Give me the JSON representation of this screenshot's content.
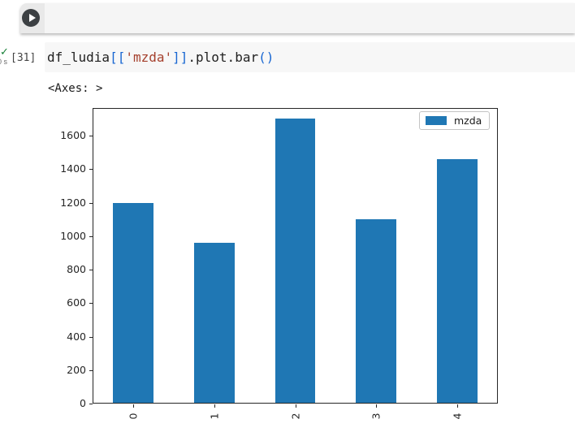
{
  "toolbar": {
    "run_button": "play-icon"
  },
  "cell": {
    "status_icon": "checkmark",
    "check_glyph": "✓",
    "exec_time": "0 s",
    "exec_count": "[31]",
    "code_tokens": [
      {
        "text": "df_ludia",
        "type": "plain"
      },
      {
        "text": "[[",
        "type": "bracket"
      },
      {
        "text": "'mzda'",
        "type": "string"
      },
      {
        "text": "]]",
        "type": "bracket"
      },
      {
        "text": ".plot.bar",
        "type": "plain"
      },
      {
        "text": "()",
        "type": "bracket"
      }
    ],
    "output_text": "<Axes: >"
  },
  "chart_data": {
    "type": "bar",
    "categories": [
      "0",
      "1",
      "2",
      "3",
      "4"
    ],
    "series": [
      {
        "name": "mzda",
        "values": [
          1200,
          960,
          1700,
          1100,
          1460
        ]
      }
    ],
    "title": "",
    "xlabel": "",
    "ylabel": "",
    "ylim": [
      0,
      1765
    ],
    "yticks": [
      0,
      200,
      400,
      600,
      800,
      1000,
      1200,
      1400,
      1600
    ],
    "x_tick_rotation": 90,
    "bar_width_fraction": 0.5,
    "grid": false,
    "legend": {
      "position": "upper right",
      "entries": [
        "mzda"
      ]
    },
    "bar_color": "#1f77b4"
  },
  "colors": {
    "bar": "#1f77b4",
    "code_plain": "#212121",
    "code_bracket": "#1967d2",
    "code_string": "#a5402d",
    "check_green": "#188038",
    "toolbar_bg": "#f5f5f5"
  }
}
